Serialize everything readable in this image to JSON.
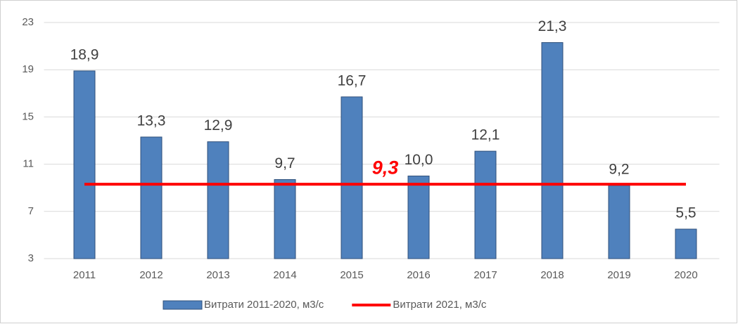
{
  "chart_data": {
    "type": "bar",
    "categories": [
      "2011",
      "2012",
      "2013",
      "2014",
      "2015",
      "2016",
      "2017",
      "2018",
      "2019",
      "2020"
    ],
    "series": [
      {
        "name": "Витрати 2011-2020, м3/с",
        "type": "bar",
        "color": "#4f81bd",
        "values": [
          18.9,
          13.3,
          12.9,
          9.7,
          16.7,
          10.0,
          12.1,
          21.3,
          9.2,
          5.5
        ],
        "value_labels": [
          "18,9",
          "13,3",
          "12,9",
          "9,7",
          "16,7",
          "10,0",
          "12,1",
          "21,3",
          "9,2",
          "5,5"
        ]
      },
      {
        "name": "Витрати 2021, м3/с",
        "type": "line",
        "color": "#ff0000",
        "values": [
          9.3,
          9.3,
          9.3,
          9.3,
          9.3,
          9.3,
          9.3,
          9.3,
          9.3,
          9.3
        ],
        "value_labels": [
          null,
          null,
          null,
          null,
          "9,3",
          null,
          null,
          null,
          null,
          null
        ]
      }
    ],
    "ylim": [
      3,
      23
    ],
    "yticks": [
      3,
      7,
      11,
      15,
      19,
      23
    ],
    "grid": true,
    "legend": "bottom"
  }
}
